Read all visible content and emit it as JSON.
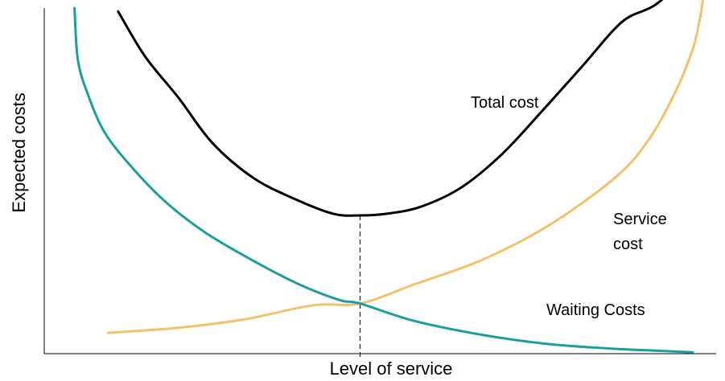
{
  "chart_data": {
    "type": "line",
    "xlabel": "Level of service",
    "ylabel": "Expected costs",
    "xlim": [
      0,
      100
    ],
    "ylim": [
      0,
      100
    ],
    "grid": false,
    "optimum_x": 47,
    "series": [
      {
        "name": "Total cost",
        "label_lines": [
          "Total cost"
        ],
        "color": "#000000",
        "x": [
          11,
          15,
          20,
          25,
          31,
          37,
          43,
          47,
          51,
          56,
          62,
          68,
          74,
          80,
          86,
          91,
          96
        ],
        "y": [
          99,
          86,
          74,
          61,
          51,
          45,
          40.5,
          40,
          40.5,
          42.5,
          48,
          57.5,
          70,
          83,
          96,
          101,
          110
        ]
      },
      {
        "name": "Service cost",
        "label_lines": [
          "Service",
          "cost"
        ],
        "color": "#F5C06B",
        "x": [
          9.5,
          20,
          30,
          40,
          47,
          55,
          65,
          75,
          85,
          90,
          94,
          96.5,
          97.5,
          98
        ],
        "y": [
          6,
          7.5,
          10,
          14,
          14.5,
          20,
          27,
          37,
          51,
          62,
          76,
          88,
          96,
          102
        ]
      },
      {
        "name": "Waiting Costs",
        "label_lines": [
          "Waiting Costs"
        ],
        "color": "#1A9E9E",
        "x": [
          4.5,
          5,
          6.5,
          9,
          13,
          18,
          24,
          31,
          38,
          44,
          47,
          55,
          65,
          75,
          85,
          92,
          96.5
        ],
        "y": [
          100,
          85,
          75,
          64,
          54,
          44,
          35,
          27,
          20,
          15.5,
          14.5,
          9.5,
          5.5,
          2.8,
          1.4,
          0.8,
          0.4
        ]
      }
    ],
    "annotations": [
      "Total cost",
      "Service cost",
      "Waiting Costs"
    ]
  },
  "colors": {
    "axis": "#000000",
    "dashed_line": "#000000"
  }
}
